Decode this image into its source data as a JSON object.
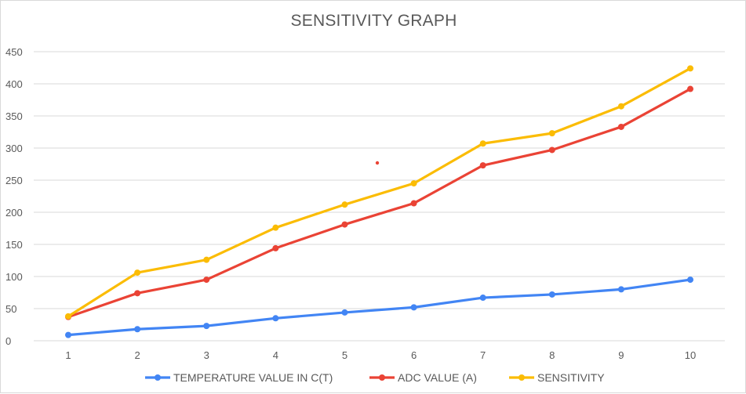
{
  "chart_data": {
    "type": "line",
    "title": "SENSITIVITY GRAPH",
    "xlabel": "",
    "ylabel": "",
    "x": [
      1,
      2,
      3,
      4,
      5,
      6,
      7,
      8,
      9,
      10
    ],
    "ylim": [
      0,
      450
    ],
    "yticks": [
      0,
      50,
      100,
      150,
      200,
      250,
      300,
      350,
      400,
      450
    ],
    "grid": true,
    "legend_position": "bottom",
    "series": [
      {
        "name": "TEMPERATURE VALUE IN C(T)",
        "color": "#4285F4",
        "values": [
          9,
          18,
          23,
          35,
          44,
          52,
          67,
          72,
          80,
          95
        ]
      },
      {
        "name": "ADC VALUE (A)",
        "color": "#EA4335",
        "values": [
          37,
          74,
          95,
          144,
          181,
          214,
          273,
          297,
          333,
          392
        ]
      },
      {
        "name": "SENSITIVITY",
        "color": "#FBBC04",
        "values": [
          38,
          106,
          126,
          176,
          212,
          245,
          307,
          323,
          365,
          424
        ]
      }
    ]
  }
}
